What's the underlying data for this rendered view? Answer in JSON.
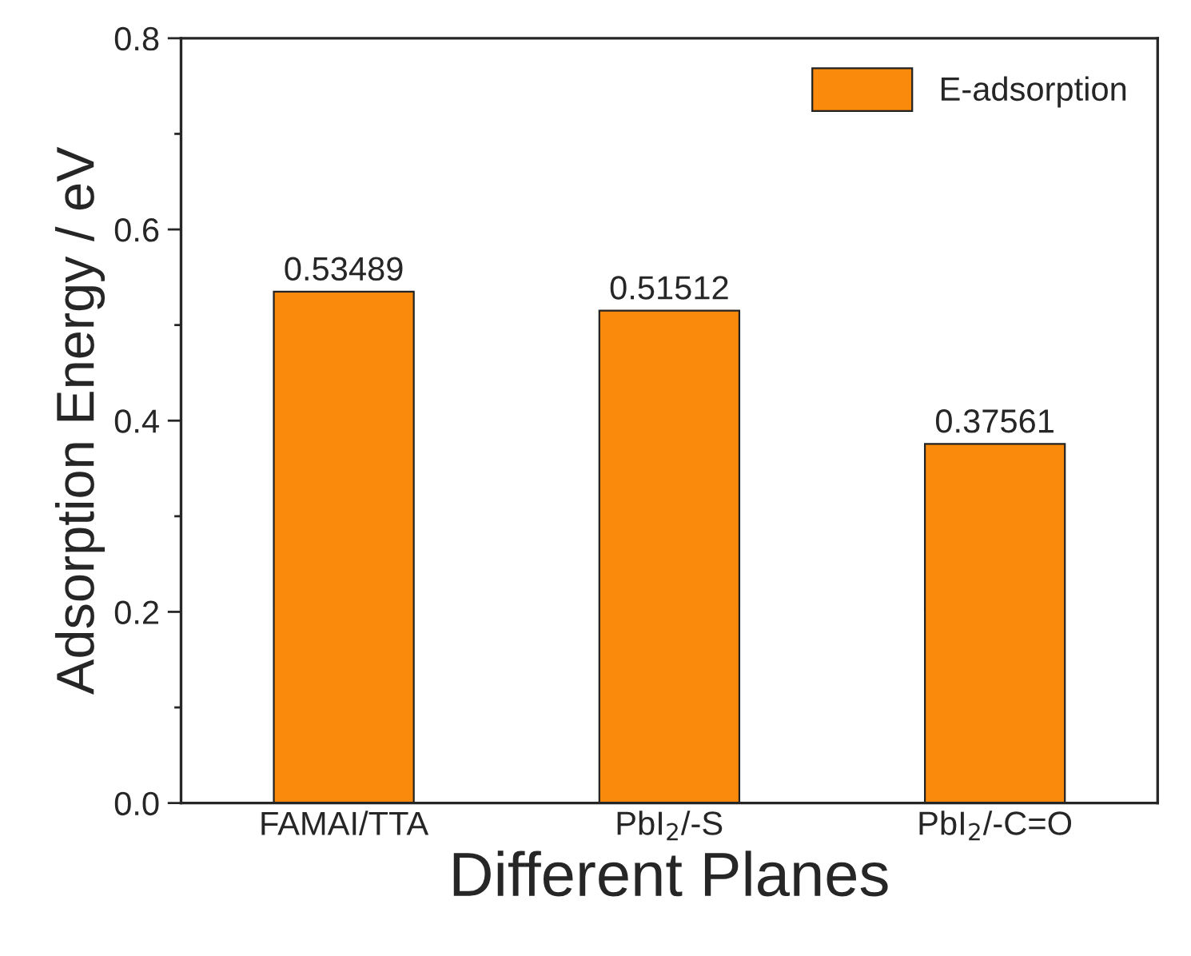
{
  "chart_data": {
    "type": "bar",
    "xlabel": "Different Planes",
    "ylabel": "Adsorption Energy / eV",
    "categories": [
      "FAMAI/TTA",
      "PbI$_{2}$/-S",
      "PbI$_{2}$/-C=O"
    ],
    "series": [
      {
        "name": "E-adsorption",
        "color": "#f98a0c",
        "values": [
          0.53489,
          0.51512,
          0.37561
        ]
      }
    ],
    "ylim": [
      0,
      0.8
    ],
    "yticks": [
      {
        "value": 0,
        "label": "0.0"
      },
      0.2,
      0.4,
      0.6,
      0.8
    ],
    "data_labels": true,
    "legend": "top right",
    "grid": false
  }
}
